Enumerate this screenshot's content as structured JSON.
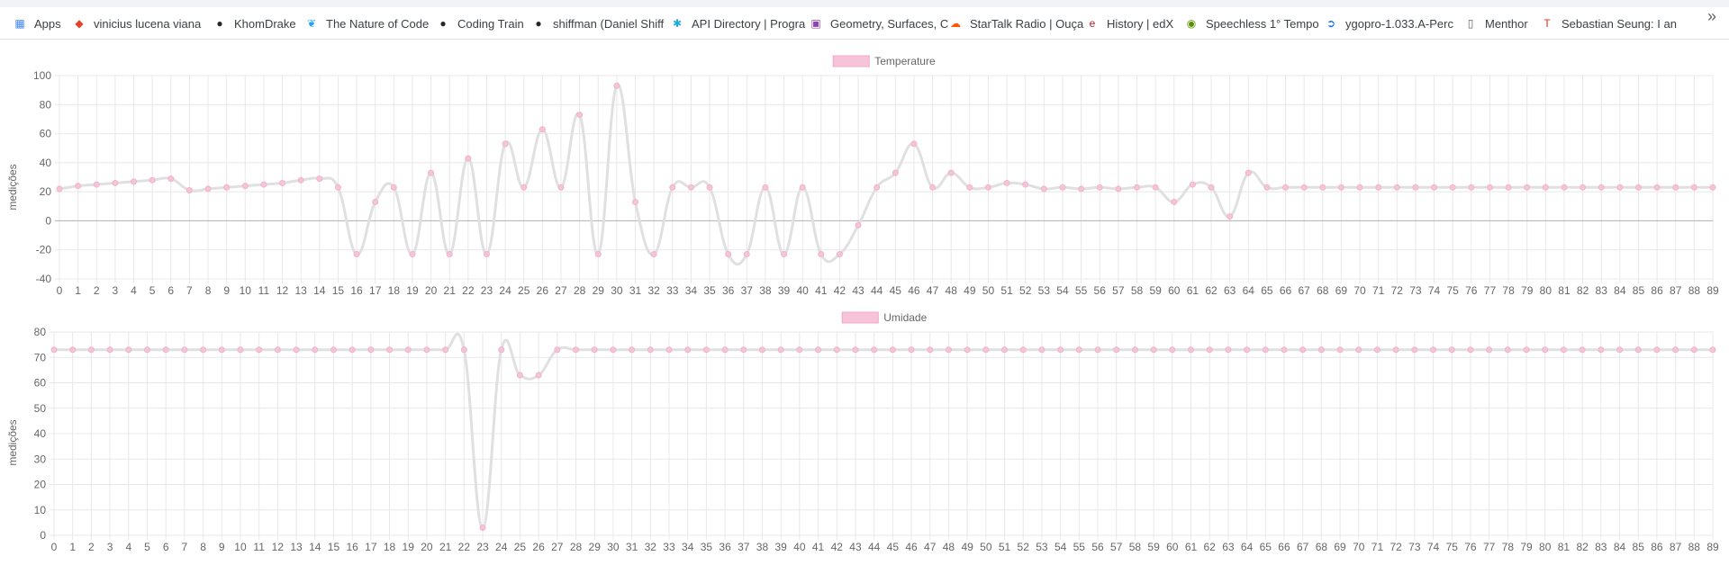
{
  "bookmarks": [
    {
      "label": "Apps",
      "icon": "apps-grid-icon",
      "color": "#4285f4"
    },
    {
      "label": "vinicius lucena viana",
      "icon": "gitlab-icon",
      "color": "#e24329"
    },
    {
      "label": "KhomDrake",
      "icon": "github-icon",
      "color": "#24292e"
    },
    {
      "label": "The Nature of Code",
      "icon": "twitter-icon",
      "color": "#1da1f2"
    },
    {
      "label": "Coding Train",
      "icon": "github-icon",
      "color": "#24292e"
    },
    {
      "label": "shiffman (Daniel Shiff",
      "icon": "github-icon",
      "color": "#24292e"
    },
    {
      "label": "API Directory | Progra",
      "icon": "asterisk-icon",
      "color": "#1ea7e1"
    },
    {
      "label": "Geometry, Surfaces, C",
      "icon": "square-logo-icon",
      "color": "#8e44ad"
    },
    {
      "label": "StarTalk Radio | Ouça",
      "icon": "soundcloud-icon",
      "color": "#ff5500"
    },
    {
      "label": "History | edX",
      "icon": "edx-icon",
      "color": "#b41e2c"
    },
    {
      "label": "Speechless 1° Tempo",
      "icon": "circle-logo-icon",
      "color": "#5a8f00"
    },
    {
      "label": "ygopro-1.033.A-Perc",
      "icon": "arrow-logo-icon",
      "color": "#1a73e8"
    },
    {
      "label": "Menthor",
      "icon": "page-icon",
      "color": "#5f6368"
    },
    {
      "label": "Sebastian Seung: I an",
      "icon": "ted-icon",
      "color": "#e62b1e"
    }
  ],
  "more_label": "»",
  "chart_data": [
    {
      "type": "line",
      "legend": {
        "position": "top",
        "label": "Temperature"
      },
      "ylabel": "medições",
      "ylim": [
        -40,
        100
      ],
      "yticks": [
        -40,
        -20,
        0,
        20,
        40,
        60,
        80,
        100
      ],
      "grid": true,
      "x": [
        0,
        1,
        2,
        3,
        4,
        5,
        6,
        7,
        8,
        9,
        10,
        11,
        12,
        13,
        14,
        15,
        16,
        17,
        18,
        19,
        20,
        21,
        22,
        23,
        24,
        25,
        26,
        27,
        28,
        29,
        30,
        31,
        32,
        33,
        34,
        35,
        36,
        37,
        38,
        39,
        40,
        41,
        42,
        43,
        44,
        45,
        46,
        47,
        48,
        49,
        50,
        51,
        52,
        53,
        54,
        55,
        56,
        57,
        58,
        59,
        60,
        61,
        62,
        63,
        64,
        65,
        66,
        67,
        68,
        69,
        70,
        71,
        72,
        73,
        74,
        75,
        76,
        77,
        78,
        79,
        80,
        81,
        82,
        83,
        84,
        85,
        86,
        87,
        88,
        89
      ],
      "series": [
        {
          "name": "Temperature",
          "line_color": "#e0e0e0",
          "point_color": "#f7c3d9",
          "values": [
            22,
            24,
            25,
            26,
            27,
            28,
            29,
            21,
            22,
            23,
            24,
            25,
            26,
            28,
            29,
            23,
            -23,
            13,
            23,
            -23,
            33,
            -23,
            43,
            -23,
            53,
            23,
            63,
            23,
            73,
            -23,
            93,
            13,
            -23,
            23,
            23,
            23,
            -23,
            -23,
            23,
            -23,
            23,
            -23,
            -23,
            -3,
            23,
            33,
            53,
            23,
            33,
            23,
            23,
            26,
            25,
            22,
            23,
            22,
            23,
            22,
            23,
            23,
            13,
            25,
            23,
            3,
            33,
            23,
            23,
            23,
            23,
            23,
            23,
            23,
            23,
            23,
            23,
            23,
            23,
            23,
            23,
            23,
            23,
            23,
            23,
            23,
            23,
            23,
            23,
            23,
            23,
            23
          ]
        }
      ]
    },
    {
      "type": "line",
      "legend": {
        "position": "top",
        "label": "Umidade"
      },
      "ylabel": "medições",
      "ylim": [
        0,
        80
      ],
      "yticks": [
        0,
        10,
        20,
        30,
        40,
        50,
        60,
        70,
        80
      ],
      "grid": true,
      "x": [
        0,
        1,
        2,
        3,
        4,
        5,
        6,
        7,
        8,
        9,
        10,
        11,
        12,
        13,
        14,
        15,
        16,
        17,
        18,
        19,
        20,
        21,
        22,
        23,
        24,
        25,
        26,
        27,
        28,
        29,
        30,
        31,
        32,
        33,
        34,
        35,
        36,
        37,
        38,
        39,
        40,
        41,
        42,
        43,
        44,
        45,
        46,
        47,
        48,
        49,
        50,
        51,
        52,
        53,
        54,
        55,
        56,
        57,
        58,
        59,
        60,
        61,
        62,
        63,
        64,
        65,
        66,
        67,
        68,
        69,
        70,
        71,
        72,
        73,
        74,
        75,
        76,
        77,
        78,
        79,
        80,
        81,
        82,
        83,
        84,
        85,
        86,
        87,
        88,
        89
      ],
      "series": [
        {
          "name": "Umidade",
          "line_color": "#e0e0e0",
          "point_color": "#f7c3d9",
          "values": [
            73,
            73,
            73,
            73,
            73,
            73,
            73,
            73,
            73,
            73,
            73,
            73,
            73,
            73,
            73,
            73,
            73,
            73,
            73,
            73,
            73,
            73,
            73,
            3,
            73,
            63,
            63,
            73,
            73,
            73,
            73,
            73,
            73,
            73,
            73,
            73,
            73,
            73,
            73,
            73,
            73,
            73,
            73,
            73,
            73,
            73,
            73,
            73,
            73,
            73,
            73,
            73,
            73,
            73,
            73,
            73,
            73,
            73,
            73,
            73,
            73,
            73,
            73,
            73,
            73,
            73,
            73,
            73,
            73,
            73,
            73,
            73,
            73,
            73,
            73,
            73,
            73,
            73,
            73,
            73,
            73,
            73,
            73,
            73,
            73,
            73,
            73,
            73,
            73,
            73
          ]
        }
      ]
    }
  ]
}
